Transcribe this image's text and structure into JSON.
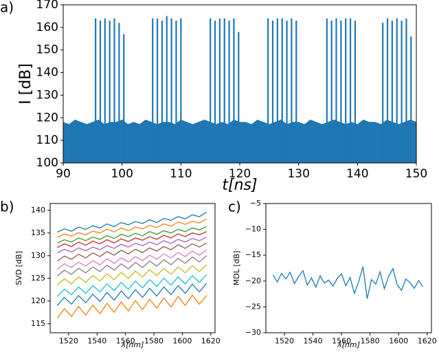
{
  "chart_data": [
    {
      "type": "area",
      "label": "a)",
      "xlabel": "t[ns]",
      "ylabel": "I [dB]",
      "color": "#1f77b4",
      "xlim": [
        90,
        150
      ],
      "xticks": [
        90,
        100,
        110,
        120,
        130,
        140,
        150
      ],
      "ylim": [
        100,
        170
      ],
      "yticks": [
        100,
        110,
        120,
        130,
        140,
        150,
        160,
        170
      ],
      "x": [
        90,
        91,
        92,
        93,
        94,
        95,
        96,
        97,
        98,
        99,
        100,
        101,
        102,
        103,
        104,
        105,
        106,
        107,
        108,
        109,
        110,
        111,
        112,
        113,
        114,
        115,
        116,
        117,
        118,
        119,
        120,
        121,
        122,
        123,
        124,
        125,
        126,
        127,
        128,
        129,
        130,
        131,
        132,
        133,
        134,
        135,
        136,
        137,
        138,
        139,
        140,
        141,
        142,
        143,
        144,
        145,
        146,
        147,
        148,
        149,
        150
      ],
      "values": [
        118,
        117,
        119,
        118,
        117,
        118,
        119,
        117,
        118,
        118,
        119,
        117,
        118,
        117,
        119,
        118,
        117,
        118,
        118,
        117,
        119,
        118,
        117,
        118,
        119,
        118,
        117,
        118,
        117,
        119,
        118,
        118,
        117,
        119,
        118,
        117,
        118,
        119,
        117,
        118,
        118,
        117,
        119,
        118,
        117,
        118,
        119,
        118,
        117,
        118,
        117,
        119,
        118,
        118,
        117,
        119,
        118,
        117,
        118,
        119,
        118
      ],
      "spikes": {
        "x": [
          95.5,
          96.3,
          97.1,
          97.9,
          98.7,
          99.5,
          100.3,
          105.2,
          106.0,
          106.8,
          107.6,
          108.4,
          109.2,
          110.0,
          115.0,
          115.8,
          116.6,
          117.4,
          118.2,
          119.0,
          119.8,
          124.8,
          125.6,
          126.4,
          127.2,
          128.0,
          128.8,
          129.6,
          134.8,
          135.6,
          136.4,
          137.2,
          138.0,
          138.8,
          139.6,
          144.3,
          145.1,
          145.9,
          146.7,
          147.5,
          148.3,
          149.1
        ],
        "values": [
          164,
          163,
          164,
          163,
          164,
          162,
          157,
          164,
          164,
          163,
          165,
          164,
          163,
          164,
          164,
          163,
          164,
          164,
          163,
          164,
          158,
          164,
          163,
          164,
          164,
          163,
          164,
          163,
          164,
          163,
          164,
          163,
          164,
          164,
          163,
          162,
          164,
          163,
          164,
          163,
          164,
          156
        ]
      }
    },
    {
      "type": "line",
      "label": "b)",
      "xlabel": "λ[nm]",
      "ylabel": "SVD [dB]",
      "xlim": [
        1507,
        1623
      ],
      "xticks": [
        1520,
        1540,
        1560,
        1580,
        1600,
        1620
      ],
      "ylim": [
        113,
        141.5
      ],
      "yticks": [
        115,
        120,
        125,
        130,
        135,
        140
      ],
      "x": [
        1512,
        1517,
        1522,
        1527,
        1532,
        1537,
        1542,
        1547,
        1552,
        1557,
        1562,
        1567,
        1572,
        1577,
        1582,
        1587,
        1592,
        1597,
        1602,
        1607,
        1612,
        1617
      ],
      "series": [
        {
          "color": "#1f77b4",
          "values": [
            135.2,
            135.9,
            135.4,
            136.3,
            135.8,
            136.6,
            136.1,
            137.0,
            136.4,
            137.3,
            136.8,
            137.5,
            137.1,
            137.9,
            137.3,
            138.2,
            137.8,
            138.6,
            138.1,
            139.0,
            138.6,
            139.6
          ]
        },
        {
          "color": "#ff7f0e",
          "values": [
            134.0,
            134.8,
            134.3,
            135.1,
            134.6,
            135.4,
            135.0,
            135.9,
            135.2,
            136.1,
            135.5,
            136.3,
            135.9,
            136.7,
            136.2,
            137.0,
            136.5,
            137.4,
            136.9,
            137.6,
            137.2,
            138.1
          ]
        },
        {
          "color": "#2ca02c",
          "values": [
            132.8,
            133.5,
            133.0,
            133.9,
            133.3,
            134.1,
            133.6,
            134.4,
            133.8,
            134.7,
            134.2,
            134.9,
            134.4,
            135.3,
            134.7,
            135.5,
            135.0,
            135.8,
            135.3,
            136.1,
            135.7,
            136.4
          ]
        },
        {
          "color": "#d62728",
          "values": [
            131.8,
            132.6,
            132.0,
            133.0,
            132.3,
            133.2,
            132.6,
            133.5,
            132.8,
            133.7,
            133.1,
            133.9,
            133.4,
            134.2,
            133.6,
            134.5,
            133.9,
            134.8,
            134.2,
            135.0,
            134.6,
            135.3
          ]
        },
        {
          "color": "#9467bd",
          "values": [
            130.6,
            131.4,
            130.8,
            131.7,
            131.1,
            131.9,
            131.3,
            132.2,
            131.6,
            132.5,
            131.9,
            132.7,
            132.2,
            133.0,
            132.4,
            133.3,
            132.7,
            133.6,
            133.0,
            133.8,
            133.3,
            134.1
          ]
        },
        {
          "color": "#8c564b",
          "values": [
            128.8,
            129.9,
            129.2,
            130.3,
            129.5,
            130.6,
            129.8,
            130.9,
            130.1,
            131.2,
            130.4,
            131.4,
            130.7,
            131.7,
            131.0,
            132.0,
            131.3,
            132.4,
            131.6,
            132.6,
            131.9,
            132.8
          ]
        },
        {
          "color": "#e377c2",
          "values": [
            127.0,
            128.2,
            127.4,
            128.6,
            127.7,
            128.9,
            128.0,
            129.3,
            128.3,
            129.5,
            128.6,
            129.8,
            128.9,
            130.1,
            129.2,
            130.4,
            129.5,
            130.7,
            129.8,
            131.0,
            130.1,
            131.3
          ]
        },
        {
          "color": "#7f7f7f",
          "values": [
            125.5,
            126.8,
            125.9,
            127.2,
            126.2,
            127.5,
            126.5,
            127.9,
            126.8,
            128.2,
            127.1,
            128.5,
            127.4,
            128.8,
            127.7,
            129.1,
            128.0,
            129.4,
            128.3,
            129.7,
            128.6,
            130.0
          ]
        },
        {
          "color": "#bcbd22",
          "values": [
            123.5,
            124.9,
            123.8,
            125.3,
            124.1,
            125.6,
            124.4,
            126.0,
            124.7,
            126.3,
            125.0,
            126.6,
            125.3,
            126.9,
            125.6,
            127.2,
            125.9,
            127.5,
            126.2,
            127.8,
            126.5,
            128.0
          ]
        },
        {
          "color": "#17becf",
          "values": [
            121.0,
            122.6,
            121.4,
            123.1,
            121.7,
            123.4,
            122.0,
            123.8,
            122.3,
            124.1,
            122.6,
            124.4,
            122.9,
            124.7,
            123.2,
            125.0,
            123.5,
            125.3,
            123.8,
            125.6,
            124.1,
            125.8
          ]
        },
        {
          "color": "#1f77b4",
          "values": [
            119.0,
            120.8,
            119.3,
            121.2,
            119.6,
            121.5,
            119.9,
            121.9,
            120.2,
            122.2,
            120.5,
            122.5,
            120.8,
            122.8,
            121.1,
            123.1,
            121.4,
            123.4,
            121.7,
            123.7,
            122.0,
            123.9
          ]
        },
        {
          "color": "#ff7f0e",
          "values": [
            116.2,
            118.3,
            116.6,
            118.8,
            116.9,
            119.1,
            117.2,
            119.5,
            117.5,
            119.8,
            117.8,
            120.1,
            118.1,
            120.4,
            118.4,
            120.7,
            118.7,
            121.0,
            119.0,
            121.3,
            119.3,
            121.2
          ]
        }
      ]
    },
    {
      "type": "line",
      "label": "c)",
      "xlabel": "λ[nm]",
      "ylabel": "MDL [dB]",
      "xlim": [
        1507,
        1623
      ],
      "xticks": [
        1520,
        1540,
        1560,
        1580,
        1600,
        1620
      ],
      "ylim": [
        -30,
        -5
      ],
      "yticks": [
        {
          "value": -30,
          "label": "−30"
        },
        {
          "value": -25,
          "label": "−25"
        },
        {
          "value": -20,
          "label": "−20"
        },
        {
          "value": -15,
          "label": "−15"
        },
        {
          "value": -10,
          "label": "−10"
        },
        {
          "value": -5,
          "label": "−5"
        }
      ],
      "x": [
        1512,
        1515,
        1518,
        1521,
        1524,
        1527,
        1530,
        1533,
        1536,
        1539,
        1542,
        1545,
        1548,
        1551,
        1554,
        1557,
        1560,
        1563,
        1566,
        1569,
        1572,
        1575,
        1578,
        1581,
        1584,
        1587,
        1590,
        1593,
        1596,
        1599,
        1602,
        1605,
        1608,
        1611,
        1614,
        1617
      ],
      "series": [
        {
          "color": "#1f77b4",
          "values": [
            -18.8,
            -20.2,
            -18.5,
            -19.6,
            -18.3,
            -20.5,
            -19.1,
            -18.0,
            -20.8,
            -19.4,
            -21.2,
            -19.0,
            -20.4,
            -19.8,
            -21.0,
            -19.5,
            -18.6,
            -20.9,
            -19.3,
            -22.4,
            -20.1,
            -17.2,
            -23.4,
            -19.7,
            -20.6,
            -18.2,
            -21.5,
            -19.1,
            -17.6,
            -20.7,
            -21.8,
            -19.6,
            -20.3,
            -21.4,
            -19.9,
            -21.1
          ]
        }
      ]
    }
  ]
}
